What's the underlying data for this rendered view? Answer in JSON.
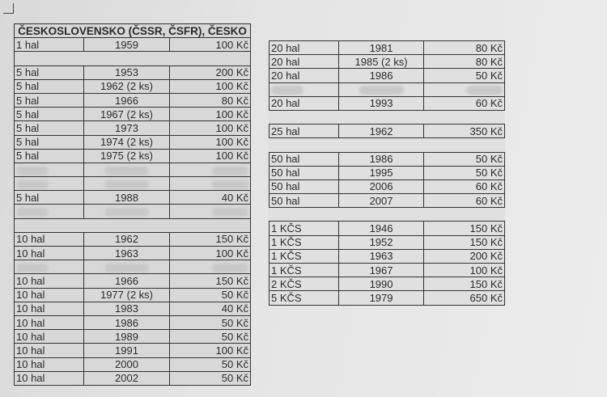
{
  "left_table": {
    "title": "ČESKOSLOVENSKO (ČSSR, ČSFR), ČESKO",
    "rows": [
      {
        "type": "row",
        "denomination": "1 hal",
        "year": "1959",
        "price": "100 Kč"
      },
      {
        "type": "blank"
      },
      {
        "type": "row",
        "denomination": "5 hal",
        "year": "1953",
        "price": "200 Kč"
      },
      {
        "type": "row",
        "denomination": "5 hal",
        "year": "1962 (2 ks)",
        "price": "100 Kč"
      },
      {
        "type": "row",
        "denomination": "5 hal",
        "year": "1966",
        "price": "80 Kč"
      },
      {
        "type": "row",
        "denomination": "5 hal",
        "year": "1967 (2 ks)",
        "price": "100 Kč"
      },
      {
        "type": "row",
        "denomination": "5 hal",
        "year": "1973",
        "price": "100 Kč"
      },
      {
        "type": "row",
        "denomination": "5 hal",
        "year": "1974 (2 ks)",
        "price": "100 Kč"
      },
      {
        "type": "row",
        "denomination": "5 hal",
        "year": "1975 (2 ks)",
        "price": "100 Kč"
      },
      {
        "type": "redacted"
      },
      {
        "type": "redacted"
      },
      {
        "type": "row",
        "denomination": "5 hal",
        "year": "1988",
        "price": "40 Kč"
      },
      {
        "type": "redacted"
      },
      {
        "type": "blank"
      },
      {
        "type": "row",
        "denomination": "10 hal",
        "year": "1962",
        "price": "150 Kč"
      },
      {
        "type": "row",
        "denomination": "10 hal",
        "year": "1963",
        "price": "100 Kč"
      },
      {
        "type": "redacted"
      },
      {
        "type": "row",
        "denomination": "10 hal",
        "year": "1966",
        "price": "150 Kč"
      },
      {
        "type": "row",
        "denomination": "10 hal",
        "year": "1977 (2 ks)",
        "price": "50 Kč"
      },
      {
        "type": "row",
        "denomination": "10 hal",
        "year": "1983",
        "price": "40 Kč"
      },
      {
        "type": "row",
        "denomination": "10 hal",
        "year": "1986",
        "price": "50 Kč"
      },
      {
        "type": "row",
        "denomination": "10 hal",
        "year": "1989",
        "price": "50 Kč"
      },
      {
        "type": "row",
        "denomination": "10 hal",
        "year": "1991",
        "price": "100 Kč"
      },
      {
        "type": "row",
        "denomination": "10 hal",
        "year": "2000",
        "price": "50 Kč"
      },
      {
        "type": "row",
        "denomination": "10 hal",
        "year": "2002",
        "price": "50 Kč"
      }
    ]
  },
  "right_table": {
    "rows": [
      {
        "type": "row",
        "denomination": "20 hal",
        "year": "1981",
        "price": "80 Kč"
      },
      {
        "type": "row",
        "denomination": "20 hal",
        "year": "1985 (2 ks)",
        "price": "80 Kč"
      },
      {
        "type": "row",
        "denomination": "20 hal",
        "year": "1986",
        "price": "50 Kč"
      },
      {
        "type": "redacted"
      },
      {
        "type": "row",
        "denomination": "20 hal",
        "year": "1993",
        "price": "60 Kč"
      },
      {
        "type": "gap"
      },
      {
        "type": "row",
        "denomination": "25 hal",
        "year": "1962",
        "price": "350 Kč"
      },
      {
        "type": "gap"
      },
      {
        "type": "row",
        "denomination": "50 hal",
        "year": "1986",
        "price": "50 Kč"
      },
      {
        "type": "row",
        "denomination": "50 hal",
        "year": "1995",
        "price": "50 Kč"
      },
      {
        "type": "row",
        "denomination": "50 hal",
        "year": "2006",
        "price": "60 Kč"
      },
      {
        "type": "row",
        "denomination": "50 hal",
        "year": "2007",
        "price": "60 Kč"
      },
      {
        "type": "gap"
      },
      {
        "type": "row",
        "denomination": "1 KČS",
        "year": "1946",
        "price": "150 Kč"
      },
      {
        "type": "row",
        "denomination": "1 KČS",
        "year": "1952",
        "price": "150 Kč"
      },
      {
        "type": "row",
        "denomination": "1 KČS",
        "year": "1963",
        "price": "200 Kč"
      },
      {
        "type": "row",
        "denomination": "1 KČS",
        "year": "1967",
        "price": "100 Kč"
      },
      {
        "type": "row",
        "denomination": "2 KČS",
        "year": "1990",
        "price": "150 Kč"
      },
      {
        "type": "row",
        "denomination": "5 KČS",
        "year": "1979",
        "price": "650 Kč"
      }
    ]
  }
}
